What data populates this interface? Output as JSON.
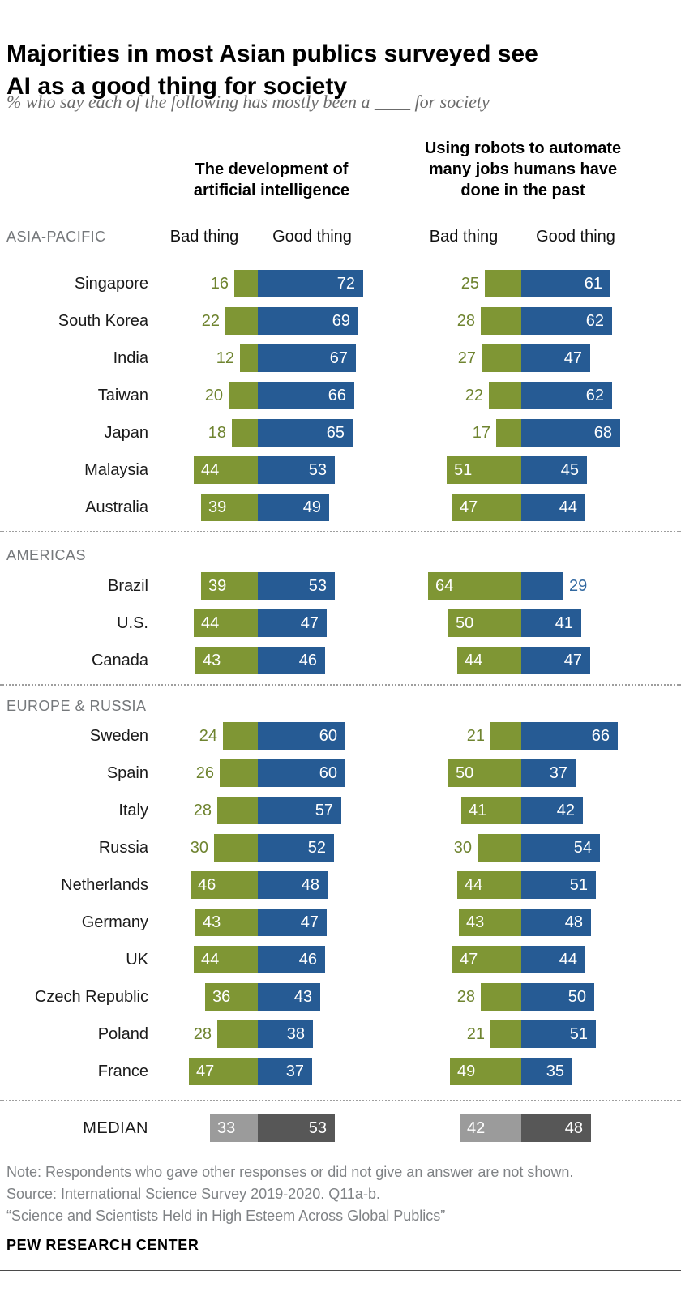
{
  "header": {
    "title_lines": [
      "Majorities in most Asian publics surveyed see",
      "AI as a good thing for society"
    ],
    "subtitle": "% who say each of the following has mostly been a ____ for society"
  },
  "chart_data": {
    "type": "bar",
    "title": "Majorities in most Asian publics surveyed see AI as a good thing for society",
    "subtitle": "% who say each of the following has mostly been a ____ for society",
    "unit": "%",
    "layout": "diverging paired bars, Bad thing left of axis, Good thing right of axis",
    "questions": [
      {
        "id": "ai",
        "lines": [
          "The development of",
          "artificial intelligence"
        ]
      },
      {
        "id": "robots",
        "lines": [
          "Using robots to automate",
          "many jobs humans have",
          "done in the past"
        ]
      }
    ],
    "col_headers": {
      "bad": "Bad thing",
      "good": "Good thing"
    },
    "colors": {
      "bad": "#7F9634",
      "good": "#265B94",
      "bad_text_outside": "#6F8430",
      "good_text_outside": "#3168A0",
      "median_bad": "#9B9B9B",
      "median_good": "#575757"
    },
    "sections": [
      {
        "name": "ASIA-PACIFIC",
        "rows": [
          {
            "country": "Singapore",
            "ai": {
              "bad": 16,
              "good": 72
            },
            "robots": {
              "bad": 25,
              "good": 61
            }
          },
          {
            "country": "South Korea",
            "ai": {
              "bad": 22,
              "good": 69
            },
            "robots": {
              "bad": 28,
              "good": 62
            }
          },
          {
            "country": "India",
            "ai": {
              "bad": 12,
              "good": 67
            },
            "robots": {
              "bad": 27,
              "good": 47
            }
          },
          {
            "country": "Taiwan",
            "ai": {
              "bad": 20,
              "good": 66
            },
            "robots": {
              "bad": 22,
              "good": 62
            }
          },
          {
            "country": "Japan",
            "ai": {
              "bad": 18,
              "good": 65
            },
            "robots": {
              "bad": 17,
              "good": 68
            }
          },
          {
            "country": "Malaysia",
            "ai": {
              "bad": 44,
              "good": 53
            },
            "robots": {
              "bad": 51,
              "good": 45
            }
          },
          {
            "country": "Australia",
            "ai": {
              "bad": 39,
              "good": 49
            },
            "robots": {
              "bad": 47,
              "good": 44
            }
          }
        ]
      },
      {
        "name": "AMERICAS",
        "rows": [
          {
            "country": "Brazil",
            "ai": {
              "bad": 39,
              "good": 53
            },
            "robots": {
              "bad": 64,
              "good": 29
            }
          },
          {
            "country": "U.S.",
            "ai": {
              "bad": 44,
              "good": 47
            },
            "robots": {
              "bad": 50,
              "good": 41
            }
          },
          {
            "country": "Canada",
            "ai": {
              "bad": 43,
              "good": 46
            },
            "robots": {
              "bad": 44,
              "good": 47
            }
          }
        ]
      },
      {
        "name": "EUROPE & RUSSIA",
        "rows": [
          {
            "country": "Sweden",
            "ai": {
              "bad": 24,
              "good": 60
            },
            "robots": {
              "bad": 21,
              "good": 66
            }
          },
          {
            "country": "Spain",
            "ai": {
              "bad": 26,
              "good": 60
            },
            "robots": {
              "bad": 50,
              "good": 37
            }
          },
          {
            "country": "Italy",
            "ai": {
              "bad": 28,
              "good": 57
            },
            "robots": {
              "bad": 41,
              "good": 42
            }
          },
          {
            "country": "Russia",
            "ai": {
              "bad": 30,
              "good": 52
            },
            "robots": {
              "bad": 30,
              "good": 54
            }
          },
          {
            "country": "Netherlands",
            "ai": {
              "bad": 46,
              "good": 48
            },
            "robots": {
              "bad": 44,
              "good": 51
            }
          },
          {
            "country": "Germany",
            "ai": {
              "bad": 43,
              "good": 47
            },
            "robots": {
              "bad": 43,
              "good": 48
            }
          },
          {
            "country": "UK",
            "ai": {
              "bad": 44,
              "good": 46
            },
            "robots": {
              "bad": 47,
              "good": 44
            }
          },
          {
            "country": "Czech Republic",
            "ai": {
              "bad": 36,
              "good": 43
            },
            "robots": {
              "bad": 28,
              "good": 50
            }
          },
          {
            "country": "Poland",
            "ai": {
              "bad": 28,
              "good": 38
            },
            "robots": {
              "bad": 21,
              "good": 51
            }
          },
          {
            "country": "France",
            "ai": {
              "bad": 47,
              "good": 37
            },
            "robots": {
              "bad": 49,
              "good": 35
            }
          }
        ]
      }
    ],
    "median": {
      "label": "MEDIAN",
      "ai": {
        "bad": 33,
        "good": 53
      },
      "robots": {
        "bad": 42,
        "good": 48
      }
    }
  },
  "footer": {
    "note": "Note: Respondents who gave other responses or did not give an answer are not shown.",
    "source": "Source: International Science Survey 2019-2020. Q11a-b.",
    "quote": "“Science and Scientists Held in High Esteem Across Global Publics”",
    "brand": "PEW RESEARCH CENTER"
  }
}
